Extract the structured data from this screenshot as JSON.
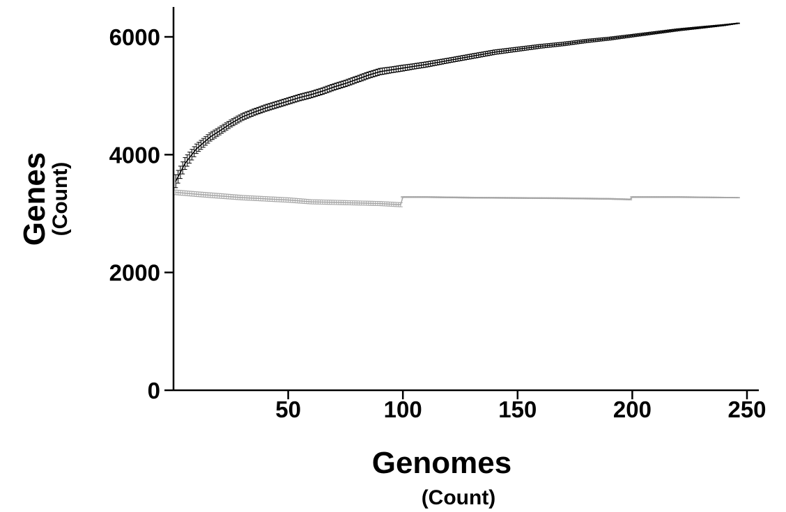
{
  "chart_data": {
    "type": "line",
    "title": "",
    "xlabel": "Genomes",
    "xlabel_unit": "(Count)",
    "ylabel": "Genes",
    "ylabel_unit": "(Count)",
    "xlim": [
      0,
      250
    ],
    "ylim": [
      0,
      6500
    ],
    "x_ticks": [
      50,
      100,
      150,
      200,
      250
    ],
    "y_ticks": [
      0,
      2000,
      4000,
      6000
    ],
    "x_tick_labels": [
      "50",
      "100",
      "150",
      "200",
      "250"
    ],
    "y_tick_labels": [
      "0",
      "2000",
      "4000",
      "6000"
    ],
    "grid": false,
    "legend": "none",
    "series": [
      {
        "color": "#000000",
        "x": [
          1,
          3,
          5,
          8,
          10,
          13,
          16,
          20,
          25,
          30,
          35,
          40,
          45,
          50,
          55,
          60,
          65,
          70,
          75,
          80,
          85,
          90,
          95,
          100,
          105,
          110,
          120,
          130,
          140,
          150,
          160,
          170,
          180,
          190,
          200,
          210,
          220,
          230,
          240,
          246
        ],
        "y": [
          3550,
          3700,
          3850,
          4000,
          4100,
          4200,
          4300,
          4400,
          4530,
          4640,
          4720,
          4790,
          4850,
          4910,
          4970,
          5020,
          5080,
          5150,
          5210,
          5280,
          5350,
          5410,
          5440,
          5470,
          5500,
          5530,
          5600,
          5670,
          5740,
          5790,
          5840,
          5880,
          5930,
          5970,
          6020,
          6070,
          6120,
          6160,
          6200,
          6230
        ],
        "error": [
          110,
          105,
          100,
          90,
          80,
          75,
          70,
          65,
          60,
          58,
          55,
          55,
          55,
          55,
          55,
          55,
          55,
          55,
          55,
          55,
          55,
          55,
          50,
          50,
          45,
          45,
          40,
          40,
          38,
          35,
          32,
          30,
          28,
          25,
          22,
          20,
          18,
          15,
          10,
          5
        ]
      },
      {
        "color": "#a6a6a6",
        "x": [
          1,
          10,
          20,
          30,
          40,
          50,
          60,
          70,
          80,
          90,
          99,
          100,
          110,
          130,
          150,
          170,
          190,
          199,
          200,
          220,
          246
        ],
        "y": [
          3360,
          3330,
          3300,
          3270,
          3250,
          3230,
          3200,
          3190,
          3180,
          3170,
          3150,
          3280,
          3280,
          3270,
          3265,
          3260,
          3250,
          3240,
          3280,
          3280,
          3270
        ],
        "error": [
          40,
          40,
          40,
          38,
          38,
          38,
          36,
          36,
          35,
          35,
          35,
          8,
          8,
          8,
          8,
          8,
          8,
          8,
          8,
          8,
          5
        ]
      }
    ]
  }
}
